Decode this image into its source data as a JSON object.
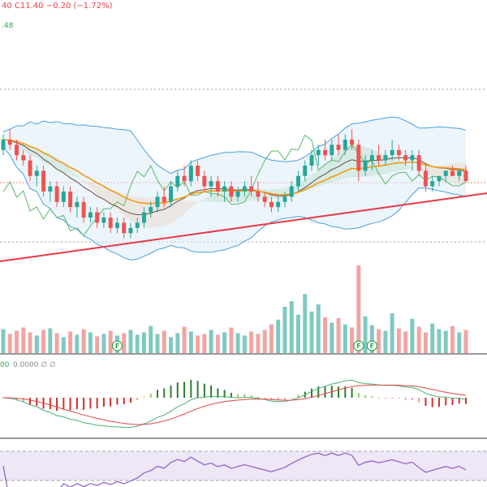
{
  "header": {
    "ohlc_partial": "40  C11.40  −0.20 (−1.72%)",
    "indicator_value_partial": ".48",
    "macd_label_partial": "00",
    "macd_values": "0.0000  ∅  ∅"
  },
  "markers": {
    "fundamental_flag": "F"
  },
  "colors": {
    "up": "#26a69a",
    "down": "#ef5350",
    "bollinger": "#4a9fdc",
    "ma_orange": "#f39c12",
    "ma_dark": "#6d4c41",
    "ichimoku_green": "#58b866",
    "cloud_green": "#a5d6a7",
    "cloud_orange": "#f8c99a",
    "trendline": "#e53945",
    "rsi_line": "#8e5cc2",
    "rsi_band": "#ede7f6",
    "macd_fast": "#e04545",
    "macd_slow": "#4caf73"
  },
  "chart_data": {
    "type": "candlestick",
    "candles": [
      [
        12.0,
        12.3,
        11.9,
        12.2
      ],
      [
        12.2,
        12.4,
        12.0,
        12.1
      ],
      [
        12.1,
        12.2,
        11.8,
        11.9
      ],
      [
        11.9,
        12.0,
        11.7,
        11.8
      ],
      [
        11.8,
        11.9,
        11.4,
        11.5
      ],
      [
        11.5,
        11.7,
        11.3,
        11.6
      ],
      [
        11.6,
        11.7,
        11.1,
        11.2
      ],
      [
        11.2,
        11.4,
        11.0,
        11.3
      ],
      [
        11.3,
        11.4,
        10.9,
        11.0
      ],
      [
        11.0,
        11.3,
        10.9,
        11.2
      ],
      [
        11.2,
        11.3,
        10.8,
        10.9
      ],
      [
        10.9,
        11.1,
        10.7,
        11.0
      ],
      [
        11.0,
        11.1,
        10.6,
        10.7
      ],
      [
        10.7,
        10.9,
        10.6,
        10.8
      ],
      [
        10.8,
        10.9,
        10.5,
        10.6
      ],
      [
        10.6,
        10.8,
        10.5,
        10.7
      ],
      [
        10.7,
        10.8,
        10.4,
        10.5
      ],
      [
        10.5,
        10.7,
        10.4,
        10.6
      ],
      [
        10.6,
        10.7,
        10.3,
        10.4
      ],
      [
        10.4,
        10.6,
        10.3,
        10.5
      ],
      [
        10.5,
        10.7,
        10.4,
        10.6
      ],
      [
        10.6,
        10.9,
        10.5,
        10.8
      ],
      [
        10.8,
        11.0,
        10.7,
        10.9
      ],
      [
        10.9,
        11.2,
        10.8,
        11.1
      ],
      [
        11.1,
        11.3,
        10.9,
        11.0
      ],
      [
        11.0,
        11.4,
        10.9,
        11.3
      ],
      [
        11.3,
        11.6,
        11.2,
        11.5
      ],
      [
        11.5,
        11.7,
        11.3,
        11.4
      ],
      [
        11.4,
        11.8,
        11.3,
        11.7
      ],
      [
        11.7,
        11.8,
        11.4,
        11.5
      ],
      [
        11.5,
        11.6,
        11.2,
        11.3
      ],
      [
        11.3,
        11.5,
        11.1,
        11.4
      ],
      [
        11.4,
        11.5,
        11.1,
        11.2
      ],
      [
        11.2,
        11.4,
        11.0,
        11.3
      ],
      [
        11.3,
        11.4,
        11.0,
        11.1
      ],
      [
        11.1,
        11.3,
        11.0,
        11.2
      ],
      [
        11.2,
        11.4,
        11.1,
        11.3
      ],
      [
        11.3,
        11.5,
        11.1,
        11.2
      ],
      [
        11.2,
        11.4,
        11.0,
        11.1
      ],
      [
        11.1,
        11.2,
        10.9,
        11.0
      ],
      [
        11.0,
        11.1,
        10.8,
        10.9
      ],
      [
        10.9,
        11.1,
        10.8,
        11.0
      ],
      [
        11.0,
        11.2,
        10.9,
        11.1
      ],
      [
        11.1,
        11.4,
        11.0,
        11.3
      ],
      [
        11.3,
        11.6,
        11.2,
        11.5
      ],
      [
        11.5,
        11.8,
        11.4,
        11.7
      ],
      [
        11.7,
        12.0,
        11.6,
        11.9
      ],
      [
        11.9,
        12.1,
        11.7,
        12.0
      ],
      [
        12.0,
        12.2,
        11.8,
        11.9
      ],
      [
        11.9,
        12.2,
        11.8,
        12.1
      ],
      [
        12.1,
        12.3,
        11.9,
        12.0
      ],
      [
        12.0,
        12.3,
        11.9,
        12.2
      ],
      [
        12.2,
        12.4,
        12.0,
        12.1
      ],
      [
        12.1,
        12.2,
        11.4,
        11.6
      ],
      [
        11.6,
        11.9,
        11.5,
        11.8
      ],
      [
        11.8,
        12.0,
        11.6,
        11.9
      ],
      [
        11.9,
        12.1,
        11.7,
        11.8
      ],
      [
        11.8,
        12.0,
        11.7,
        11.9
      ],
      [
        11.9,
        12.2,
        11.8,
        12.0
      ],
      [
        12.0,
        12.1,
        11.8,
        11.9
      ],
      [
        11.9,
        12.0,
        11.7,
        11.8
      ],
      [
        11.8,
        12.0,
        11.6,
        11.9
      ],
      [
        11.9,
        12.0,
        11.5,
        11.6
      ],
      [
        11.6,
        11.7,
        11.2,
        11.3
      ],
      [
        11.3,
        11.5,
        11.2,
        11.4
      ],
      [
        11.4,
        11.5,
        11.3,
        11.5
      ],
      [
        11.5,
        11.6,
        11.4,
        11.6
      ],
      [
        11.6,
        11.7,
        11.5,
        11.5
      ],
      [
        11.5,
        11.6,
        11.4,
        11.6
      ],
      [
        11.6,
        11.7,
        11.4,
        11.4
      ]
    ],
    "volume": [
      3.0,
      2.4,
      2.8,
      3.2,
      2.6,
      2.2,
      2.9,
      3.1,
      2.5,
      2.0,
      2.7,
      2.3,
      3.0,
      2.6,
      2.1,
      2.4,
      2.8,
      2.2,
      2.5,
      2.9,
      2.3,
      2.6,
      3.4,
      2.4,
      2.8,
      2.0,
      2.5,
      3.3,
      2.7,
      2.2,
      2.4,
      2.9,
      2.3,
      2.6,
      3.2,
      2.5,
      2.2,
      2.7,
      2.4,
      2.9,
      3.6,
      4.2,
      5.8,
      6.5,
      4.8,
      7.4,
      5.2,
      6.1,
      4.5,
      3.8,
      4.4,
      3.6,
      3.2,
      11.0,
      4.6,
      3.5,
      3.0,
      2.8,
      5.0,
      3.1,
      2.7,
      4.3,
      3.3,
      2.6,
      3.7,
      3.0,
      2.8,
      3.4,
      2.6,
      2.9
    ],
    "rsi_band": [
      30,
      70
    ],
    "marker_bars": [
      17,
      53,
      55
    ]
  }
}
